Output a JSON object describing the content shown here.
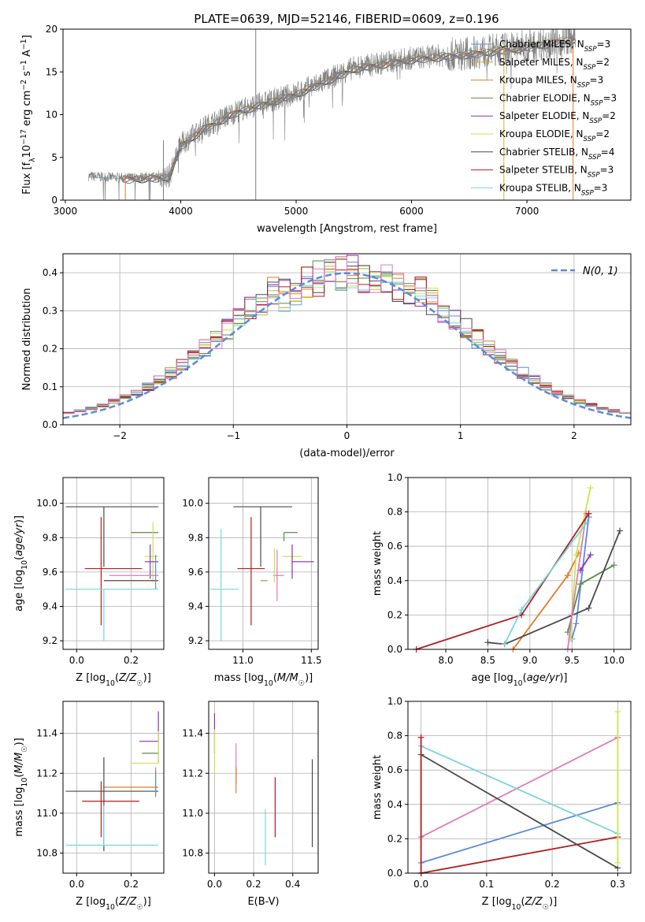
{
  "figure_title": "PLATE=0639, MJD=52146, FIBERID=0609, z=0.196",
  "colors": {
    "chabrier_miles": "#5b8bd6",
    "salpeter_miles": "#e0ac2e",
    "kroupa_miles": "#e07b2a",
    "chabrier_elodie": "#5a8a4a",
    "salpeter_elodie": "#8c2fb6",
    "kroupa_elodie": "#cfe24a",
    "chabrier_stelib": "#4a4a4a",
    "salpeter_stelib": "#b01e1e",
    "kroupa_stelib": "#78d4dc",
    "pink": "#e07ab8",
    "data_gray": "#808080",
    "normal_curve": "#5b8bd6",
    "grid": "#b0b0b0"
  },
  "chart_data": [
    {
      "id": "spectrum",
      "type": "line",
      "xlabel": "wavelength [Angstrom, rest frame]",
      "ylabel": "Flux [f_λ10^-17 erg cm^-2 s^-1 A^-1]",
      "xlim": [
        2980,
        7900
      ],
      "ylim": [
        0,
        20
      ],
      "xticks": [
        3000,
        4000,
        5000,
        6000,
        7000
      ],
      "yticks": [
        0,
        5,
        10,
        15,
        20
      ],
      "grid": false,
      "legend_position": "right",
      "legend": [
        "Chabrier MILES, N_SSP=3",
        "Salpeter MILES, N_SSP=2",
        "Kroupa MILES, N_SSP=3",
        "Chabrier ELODIE, N_SSP=3",
        "Salpeter ELODIE, N_SSP=2",
        "Kroupa ELODIE, N_SSP=2",
        "Chabrier STELIB, N_SSP=4",
        "Salpeter STELIB, N_SSP=3",
        "Kroupa STELIB, N_SSP=3"
      ],
      "legend_colors": [
        "chabrier_miles",
        "salpeter_miles",
        "kroupa_miles",
        "chabrier_elodie",
        "salpeter_elodie",
        "kroupa_elodie",
        "chabrier_stelib",
        "salpeter_stelib",
        "kroupa_stelib"
      ],
      "continuum": {
        "x": [
          3200,
          3500,
          3900,
          4000,
          4200,
          4500,
          5000,
          5500,
          6000,
          6500,
          7000,
          7420
        ],
        "y": [
          2.8,
          2.6,
          2.8,
          6.5,
          8.5,
          10.5,
          12.5,
          15.5,
          16.6,
          17.2,
          18.0,
          19.0
        ]
      },
      "model_start": 3500,
      "model_end": 7420,
      "spikes": [
        4650,
        3850,
        6800,
        7400
      ]
    },
    {
      "id": "residuals",
      "type": "histogram",
      "xlabel": "(data-model)/error",
      "ylabel": "Normed distribution",
      "xlim": [
        -2.5,
        2.5
      ],
      "ylim": [
        0,
        0.45
      ],
      "xticks": [
        -2,
        -1,
        0,
        1,
        2
      ],
      "yticks": [
        0.0,
        0.1,
        0.2,
        0.3,
        0.4
      ],
      "grid": true,
      "legend_position": "top-right",
      "legend": [
        "N(0, 1)"
      ],
      "bin_width": 0.1
    },
    {
      "id": "age_vs_Z",
      "type": "errorbar",
      "xlabel": "Z [log10(Z/Z☉)]",
      "ylabel": "age  [log10(age/yr)]",
      "xlim": [
        -0.05,
        0.32
      ],
      "ylim": [
        9.15,
        10.15
      ],
      "xticks": [
        0.0,
        0.2
      ],
      "yticks": [
        9.2,
        9.4,
        9.6,
        9.8,
        10.0
      ],
      "grid": true,
      "points": [
        {
          "x": 0.1,
          "y": 9.98,
          "xe": [
            0.14,
            0.2
          ],
          "ye": [
            0.35,
            0.0
          ],
          "color": "chabrier_stelib"
        },
        {
          "x": 0.26,
          "y": 9.83,
          "xe": [
            0.06,
            0.04
          ],
          "ye": [
            0.0,
            0.0
          ],
          "color": "chabrier_elodie"
        },
        {
          "x": 0.28,
          "y": 9.69,
          "xe": [
            0.03,
            0.02
          ],
          "ye": [
            0.15,
            0.2
          ],
          "color": "kroupa_elodie"
        },
        {
          "x": 0.27,
          "y": 9.66,
          "xe": [
            0.02,
            0.03
          ],
          "ye": [
            0.1,
            0.1
          ],
          "color": "salpeter_elodie"
        },
        {
          "x": 0.09,
          "y": 9.62,
          "xe": [
            0.06,
            0.15
          ],
          "ye": [
            0.33,
            0.3
          ],
          "color": "salpeter_stelib"
        },
        {
          "x": 0.22,
          "y": 9.58,
          "xe": [
            0.1,
            0.08
          ],
          "ye": [
            0.0,
            0.0
          ],
          "color": "pink"
        },
        {
          "x": 0.1,
          "y": 9.55,
          "xe": [
            0.0,
            0.2
          ],
          "ye": [
            0.0,
            0.0
          ],
          "color": "kroupa_miles"
        },
        {
          "x": 0.1,
          "y": 9.55,
          "xe": [
            0.0,
            0.2
          ],
          "ye": [
            0.0,
            0.0
          ],
          "color": "chabrier_stelib"
        },
        {
          "x": 0.29,
          "y": 9.6,
          "xe": [
            0.0,
            0.0
          ],
          "ye": [
            0.1,
            0.1
          ],
          "color": "chabrier_miles"
        },
        {
          "x": 0.1,
          "y": 9.5,
          "xe": [
            0.14,
            0.2
          ],
          "ye": [
            0.3,
            0.0
          ],
          "color": "kroupa_stelib"
        }
      ]
    },
    {
      "id": "age_vs_mass",
      "type": "errorbar",
      "xlabel": "mass [log10(M/M☉)]",
      "ylabel": "",
      "xlim": [
        10.75,
        11.55
      ],
      "ylim": [
        9.15,
        10.15
      ],
      "xticks": [
        11.0,
        11.5
      ],
      "yticks": [
        9.2,
        9.4,
        9.6,
        9.8,
        10.0
      ],
      "grid": true,
      "points": [
        {
          "x": 11.13,
          "y": 9.98,
          "xe": [
            0.2,
            0.23
          ],
          "ye": [
            0.35,
            0.0
          ],
          "color": "chabrier_stelib"
        },
        {
          "x": 11.3,
          "y": 9.83,
          "xe": [
            0.0,
            0.1
          ],
          "ye": [
            0.05,
            0.0
          ],
          "color": "chabrier_elodie"
        },
        {
          "x": 11.36,
          "y": 9.69,
          "xe": [
            0.07,
            0.07
          ],
          "ye": [
            0.0,
            0.0
          ],
          "color": "kroupa_elodie"
        },
        {
          "x": 11.36,
          "y": 9.66,
          "xe": [
            0.0,
            0.16
          ],
          "ye": [
            0.1,
            0.1
          ],
          "color": "salpeter_elodie"
        },
        {
          "x": 11.06,
          "y": 9.62,
          "xe": [
            0.1,
            0.1
          ],
          "ye": [
            0.33,
            0.3
          ],
          "color": "salpeter_stelib"
        },
        {
          "x": 11.25,
          "y": 9.58,
          "xe": [
            0.03,
            0.05
          ],
          "ye": [
            0.15,
            0.15
          ],
          "color": "pink"
        },
        {
          "x": 11.13,
          "y": 9.55,
          "xe": [
            0.0,
            0.05
          ],
          "ye": [
            0.0,
            0.0
          ],
          "color": "kroupa_miles"
        },
        {
          "x": 11.23,
          "y": 9.64,
          "xe": [
            0.0,
            0.0
          ],
          "ye": [
            0.1,
            0.1
          ],
          "color": "kroupa_elodie"
        },
        {
          "x": 10.84,
          "y": 9.5,
          "xe": [
            0.08,
            0.13
          ],
          "ye": [
            0.3,
            0.35
          ],
          "color": "kroupa_stelib"
        }
      ]
    },
    {
      "id": "weight_vs_age",
      "type": "line",
      "xlabel": "age  [log10(age/yr)]",
      "ylabel": "mass weight",
      "xlim": [
        7.55,
        10.2
      ],
      "ylim": [
        0,
        1.0
      ],
      "xticks": [
        8.0,
        8.5,
        9.0,
        9.5,
        10.0
      ],
      "yticks": [
        0.0,
        0.2,
        0.4,
        0.6,
        0.8,
        1.0
      ],
      "grid": true,
      "series": [
        {
          "color": "chabrier_miles",
          "x": [
            9.5,
            9.55,
            9.7
          ],
          "y": [
            0.06,
            0.15,
            0.77
          ]
        },
        {
          "color": "kroupa_miles",
          "x": [
            8.8,
            9.45,
            9.58
          ],
          "y": [
            0.0,
            0.43,
            0.56
          ]
        },
        {
          "color": "chabrier_elodie",
          "x": [
            9.45,
            9.6,
            10.0
          ],
          "y": [
            0.1,
            0.38,
            0.49
          ]
        },
        {
          "color": "salpeter_elodie",
          "x": [
            9.6,
            9.72
          ],
          "y": [
            0.46,
            0.55
          ]
        },
        {
          "color": "kroupa_elodie",
          "x": [
            9.48,
            9.55,
            9.72
          ],
          "y": [
            0.06,
            0.55,
            0.94
          ]
        },
        {
          "color": "chabrier_stelib",
          "x": [
            8.5,
            8.7,
            9.7,
            10.07
          ],
          "y": [
            0.04,
            0.03,
            0.24,
            0.69
          ]
        },
        {
          "color": "pink",
          "x": [
            9.45,
            9.5,
            9.67
          ],
          "y": [
            0.0,
            0.2,
            0.79
          ]
        },
        {
          "color": "salpeter_stelib",
          "x": [
            7.65,
            8.9,
            9.7
          ],
          "y": [
            0.0,
            0.2,
            0.79
          ]
        },
        {
          "color": "kroupa_stelib",
          "x": [
            8.7,
            8.9,
            9.68
          ],
          "y": [
            0.03,
            0.23,
            0.74
          ]
        }
      ]
    },
    {
      "id": "mass_vs_Z",
      "type": "errorbar",
      "xlabel": "Z [log10(Z/Z☉)]",
      "ylabel": "mass [log10(M/M☉)]",
      "xlim": [
        -0.05,
        0.32
      ],
      "ylim": [
        10.7,
        11.56
      ],
      "xticks": [
        0.0,
        0.2
      ],
      "yticks": [
        10.8,
        11.0,
        11.2,
        11.4
      ],
      "grid": true,
      "points": [
        {
          "x": 0.3,
          "y": 11.36,
          "xe": [
            0.07,
            0.0
          ],
          "ye": [
            0.0,
            0.15
          ],
          "color": "salpeter_elodie"
        },
        {
          "x": 0.3,
          "y": 11.3,
          "xe": [
            0.06,
            0.0
          ],
          "ye": [
            0.05,
            0.1
          ],
          "color": "chabrier_elodie"
        },
        {
          "x": 0.3,
          "y": 11.25,
          "xe": [
            0.1,
            0.0
          ],
          "ye": [
            0.0,
            0.16
          ],
          "color": "kroupa_elodie"
        },
        {
          "x": 0.29,
          "y": 11.13,
          "xe": [
            0.19,
            0.01
          ],
          "ye": [
            0.05,
            0.1
          ],
          "color": "kroupa_miles"
        },
        {
          "x": 0.1,
          "y": 11.11,
          "xe": [
            0.14,
            0.2
          ],
          "ye": [
            0.3,
            0.17
          ],
          "color": "chabrier_stelib"
        },
        {
          "x": 0.09,
          "y": 11.06,
          "xe": [
            0.07,
            0.14
          ],
          "ye": [
            0.18,
            0.1
          ],
          "color": "salpeter_stelib"
        },
        {
          "x": 0.29,
          "y": 11.15,
          "xe": [
            0.0,
            0.0
          ],
          "ye": [
            0.06,
            0.06
          ],
          "color": "chabrier_miles"
        },
        {
          "x": 0.1,
          "y": 10.84,
          "xe": [
            0.14,
            0.2
          ],
          "ye": [
            0.0,
            0.2
          ],
          "color": "kroupa_stelib"
        }
      ]
    },
    {
      "id": "mass_vs_ebv",
      "type": "errorbar",
      "xlabel": "E(B-V)",
      "ylabel": "",
      "xlim": [
        -0.03,
        0.53
      ],
      "ylim": [
        10.7,
        11.56
      ],
      "xticks": [
        0.0,
        0.2,
        0.4
      ],
      "yticks": [
        10.8,
        11.0,
        11.2,
        11.4
      ],
      "grid": true,
      "points": [
        {
          "x": 0.0,
          "y": 11.4,
          "xe": [
            0,
            0
          ],
          "ye": [
            0.1,
            0.1
          ],
          "color": "salpeter_elodie"
        },
        {
          "x": 0.0,
          "y": 11.3,
          "xe": [
            0,
            0
          ],
          "ye": [
            0.1,
            0.12
          ],
          "color": "kroupa_elodie"
        },
        {
          "x": 0.11,
          "y": 11.25,
          "xe": [
            0,
            0
          ],
          "ye": [
            0.1,
            0.1
          ],
          "color": "pink"
        },
        {
          "x": 0.11,
          "y": 11.15,
          "xe": [
            0,
            0
          ],
          "ye": [
            0.05,
            0.08
          ],
          "color": "kroupa_miles"
        },
        {
          "x": 0.26,
          "y": 10.92,
          "xe": [
            0,
            0
          ],
          "ye": [
            0.18,
            0.1
          ],
          "color": "kroupa_stelib"
        },
        {
          "x": 0.31,
          "y": 11.03,
          "xe": [
            0,
            0
          ],
          "ye": [
            0.15,
            0.15
          ],
          "color": "salpeter_stelib"
        },
        {
          "x": 0.5,
          "y": 11.05,
          "xe": [
            0,
            0
          ],
          "ye": [
            0.22,
            0.22
          ],
          "color": "chabrier_stelib"
        }
      ]
    },
    {
      "id": "weight_vs_Z",
      "type": "line",
      "xlabel": "Z [log10(Z/Z☉)]",
      "ylabel": "mass weight",
      "xlim": [
        -0.02,
        0.32
      ],
      "ylim": [
        0,
        1.0
      ],
      "xticks": [
        0.0,
        0.1,
        0.2,
        0.3
      ],
      "yticks": [
        0.0,
        0.2,
        0.4,
        0.6,
        0.8,
        1.0
      ],
      "grid": true,
      "series": [
        {
          "color": "chabrier_miles",
          "x": [
            0.0,
            0.3
          ],
          "y": [
            0.06,
            0.41
          ]
        },
        {
          "color": "salpeter_stelib",
          "x": [
            0.0,
            0.3
          ],
          "y": [
            0.0,
            0.21
          ]
        },
        {
          "color": "pink",
          "x": [
            0.0,
            0.3
          ],
          "y": [
            0.21,
            0.79
          ]
        },
        {
          "color": "kroupa_stelib",
          "x": [
            0.0,
            0.3
          ],
          "y": [
            0.74,
            0.23
          ]
        },
        {
          "color": "chabrier_stelib",
          "x": [
            0.0,
            0.3
          ],
          "y": [
            0.69,
            0.03
          ]
        },
        {
          "color": "salpeter_stelib",
          "x": [
            0.0,
            0.0
          ],
          "y": [
            0.0,
            0.79
          ]
        },
        {
          "color": "kroupa_elodie",
          "x": [
            0.3,
            0.3
          ],
          "y": [
            0.06,
            0.94
          ]
        }
      ]
    }
  ]
}
